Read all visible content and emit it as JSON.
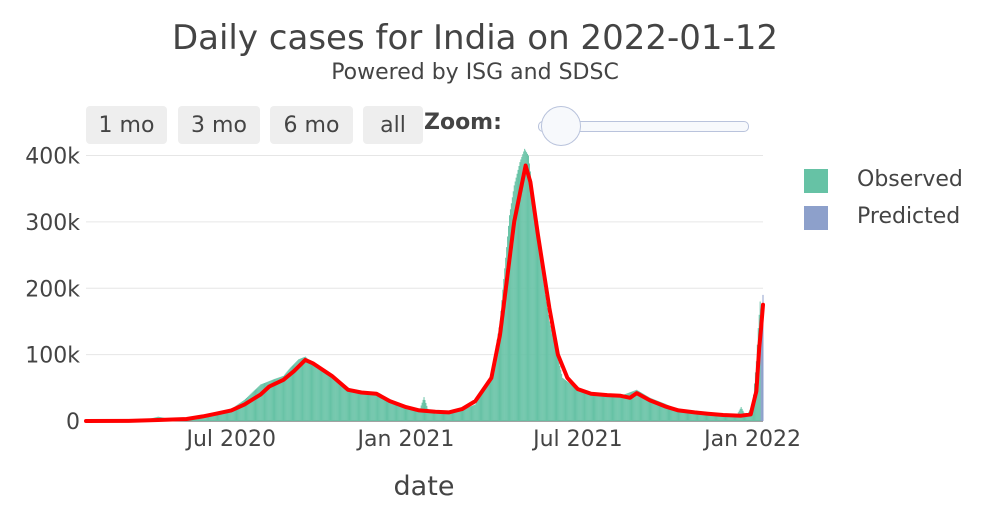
{
  "chart_data": {
    "type": "bar",
    "title": "Daily cases for India on 2022-01-12",
    "subtitle": "Powered by ISG and SDSC",
    "xlabel": "date",
    "ylabel": "",
    "ylim": [
      0,
      400000
    ],
    "y_ticks": [
      0,
      100000,
      200000,
      300000,
      400000
    ],
    "y_tick_labels": [
      "0",
      "100k",
      "200k",
      "300k",
      "400k"
    ],
    "x_range": [
      "2020-01-30",
      "2022-01-12"
    ],
    "x_ticks": [
      "2020-07-01",
      "2021-01-01",
      "2021-07-01",
      "2022-01-01"
    ],
    "x_tick_labels": [
      "Jul 2020",
      "Jan 2021",
      "Jul 2021",
      "Jan 2022"
    ],
    "grid": true,
    "legend_position": "right",
    "series": [
      {
        "name": "Observed",
        "color": "#66c2a5",
        "points": [
          [
            "2020-01-30",
            0
          ],
          [
            "2020-03-01",
            100
          ],
          [
            "2020-04-01",
            1500
          ],
          [
            "2020-04-15",
            6500
          ],
          [
            "2020-05-01",
            2000
          ],
          [
            "2020-05-15",
            4000
          ],
          [
            "2020-06-01",
            8000
          ],
          [
            "2020-06-15",
            12000
          ],
          [
            "2020-07-01",
            18000
          ],
          [
            "2020-07-15",
            32000
          ],
          [
            "2020-08-01",
            55000
          ],
          [
            "2020-08-15",
            63000
          ],
          [
            "2020-08-25",
            68000
          ],
          [
            "2020-09-01",
            80000
          ],
          [
            "2020-09-10",
            93000
          ],
          [
            "2020-09-17",
            97000
          ],
          [
            "2020-09-25",
            86000
          ],
          [
            "2020-10-01",
            80000
          ],
          [
            "2020-10-15",
            65000
          ],
          [
            "2020-11-01",
            48000
          ],
          [
            "2020-11-15",
            44000
          ],
          [
            "2020-12-01",
            40000
          ],
          [
            "2020-12-15",
            27000
          ],
          [
            "2021-01-01",
            19000
          ],
          [
            "2021-01-15",
            15000
          ],
          [
            "2021-01-20",
            36000
          ],
          [
            "2021-01-25",
            14000
          ],
          [
            "2021-02-01",
            11000
          ],
          [
            "2021-02-15",
            12000
          ],
          [
            "2021-03-01",
            16000
          ],
          [
            "2021-03-15",
            25000
          ],
          [
            "2021-04-01",
            68000
          ],
          [
            "2021-04-10",
            150000
          ],
          [
            "2021-04-20",
            310000
          ],
          [
            "2021-04-25",
            355000
          ],
          [
            "2021-05-01",
            390000
          ],
          [
            "2021-05-06",
            410000
          ],
          [
            "2021-05-10",
            400000
          ],
          [
            "2021-05-15",
            340000
          ],
          [
            "2021-05-20",
            270000
          ],
          [
            "2021-06-01",
            150000
          ],
          [
            "2021-06-15",
            65000
          ],
          [
            "2021-07-01",
            47000
          ],
          [
            "2021-07-15",
            41000
          ],
          [
            "2021-08-01",
            40000
          ],
          [
            "2021-08-15",
            38000
          ],
          [
            "2021-09-01",
            47000
          ],
          [
            "2021-09-15",
            35000
          ],
          [
            "2021-10-01",
            26000
          ],
          [
            "2021-10-15",
            17000
          ],
          [
            "2021-11-01",
            13000
          ],
          [
            "2021-11-15",
            11000
          ],
          [
            "2021-12-01",
            9000
          ],
          [
            "2021-12-15",
            8000
          ],
          [
            "2021-12-20",
            21000
          ],
          [
            "2021-12-25",
            7000
          ],
          [
            "2022-01-01",
            23000
          ],
          [
            "2022-01-05",
            90000
          ],
          [
            "2022-01-07",
            140000
          ],
          [
            "2022-01-09",
            180000
          ]
        ]
      },
      {
        "name": "Predicted",
        "color": "#8da0cb",
        "points": [
          [
            "2022-01-10",
            168000
          ],
          [
            "2022-01-11",
            175000
          ],
          [
            "2022-01-12",
            190000
          ]
        ]
      }
    ],
    "trend_line": {
      "color": "#ff0000",
      "points": [
        [
          "2020-01-30",
          0
        ],
        [
          "2020-03-15",
          200
        ],
        [
          "2020-04-15",
          1500
        ],
        [
          "2020-05-15",
          3000
        ],
        [
          "2020-06-01",
          7000
        ],
        [
          "2020-06-15",
          11000
        ],
        [
          "2020-07-01",
          16000
        ],
        [
          "2020-07-15",
          25000
        ],
        [
          "2020-08-01",
          40000
        ],
        [
          "2020-08-10",
          52000
        ],
        [
          "2020-08-25",
          62000
        ],
        [
          "2020-09-05",
          75000
        ],
        [
          "2020-09-17",
          92000
        ],
        [
          "2020-09-25",
          87000
        ],
        [
          "2020-10-15",
          68000
        ],
        [
          "2020-11-01",
          47000
        ],
        [
          "2020-11-15",
          43000
        ],
        [
          "2020-12-01",
          41000
        ],
        [
          "2020-12-15",
          30000
        ],
        [
          "2021-01-01",
          21000
        ],
        [
          "2021-01-15",
          16000
        ],
        [
          "2021-02-01",
          14000
        ],
        [
          "2021-02-15",
          13000
        ],
        [
          "2021-03-01",
          18000
        ],
        [
          "2021-03-15",
          30000
        ],
        [
          "2021-04-01",
          65000
        ],
        [
          "2021-04-10",
          130000
        ],
        [
          "2021-04-25",
          300000
        ],
        [
          "2021-05-07",
          385000
        ],
        [
          "2021-05-12",
          360000
        ],
        [
          "2021-05-20",
          280000
        ],
        [
          "2021-06-01",
          170000
        ],
        [
          "2021-06-10",
          100000
        ],
        [
          "2021-06-20",
          65000
        ],
        [
          "2021-07-01",
          48000
        ],
        [
          "2021-07-15",
          41000
        ],
        [
          "2021-08-01",
          39000
        ],
        [
          "2021-08-15",
          38000
        ],
        [
          "2021-08-25",
          35000
        ],
        [
          "2021-09-01",
          42000
        ],
        [
          "2021-09-15",
          31000
        ],
        [
          "2021-10-01",
          22000
        ],
        [
          "2021-10-15",
          16000
        ],
        [
          "2021-11-01",
          13000
        ],
        [
          "2021-11-15",
          11000
        ],
        [
          "2021-12-01",
          9000
        ],
        [
          "2021-12-20",
          8000
        ],
        [
          "2021-12-30",
          10000
        ],
        [
          "2022-01-05",
          45000
        ],
        [
          "2022-01-08",
          110000
        ],
        [
          "2022-01-10",
          140000
        ],
        [
          "2022-01-12",
          175000
        ]
      ]
    }
  },
  "range_buttons": [
    "1 mo",
    "3 mo",
    "6 mo",
    "all"
  ],
  "zoom_label": "Zoom:"
}
